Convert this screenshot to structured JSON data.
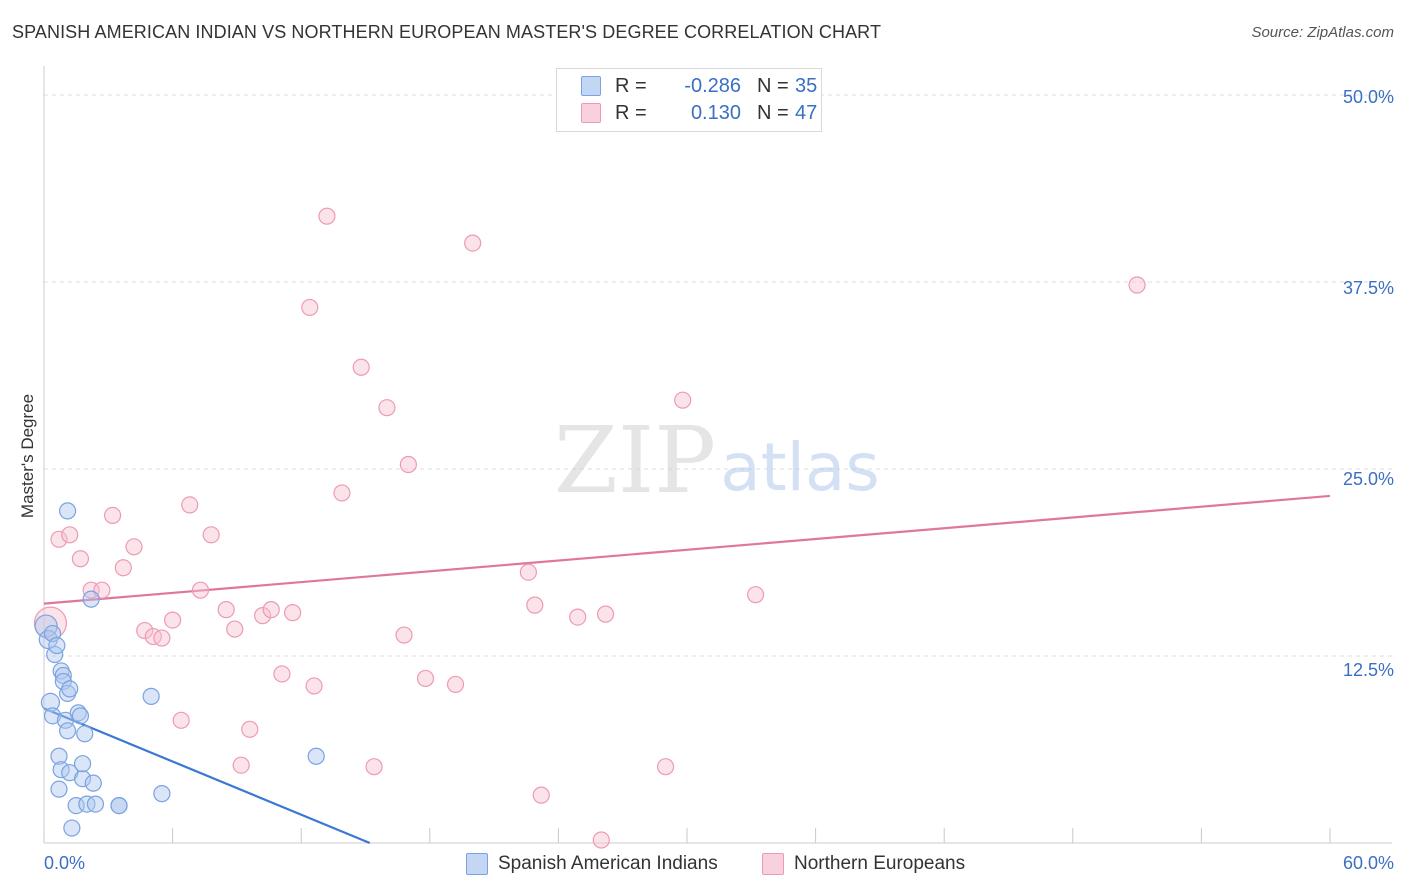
{
  "header": {
    "title": "SPANISH AMERICAN INDIAN VS NORTHERN EUROPEAN MASTER'S DEGREE CORRELATION CHART",
    "source": "Source: ZipAtlas.com"
  },
  "watermark": {
    "zip": "ZIP",
    "atlas": "atlas"
  },
  "legend_top": {
    "rows": [
      {
        "r_label": "R =",
        "r_value": "-0.286",
        "n_label": "N =",
        "n_value": "35"
      },
      {
        "r_label": "R =",
        "r_value": "0.130",
        "n_label": "N =",
        "n_value": "47"
      }
    ]
  },
  "legend_bottom": {
    "items": [
      {
        "label": "Spanish American Indians"
      },
      {
        "label": "Northern Europeans"
      }
    ]
  },
  "axes": {
    "x_min_label": "0.0%",
    "x_max_label": "60.0%",
    "y_tick_labels": [
      "50.0%",
      "37.5%",
      "25.0%",
      "12.5%"
    ],
    "y_title": "Master's Degree"
  },
  "colors": {
    "blue_fill": "#aec8f0",
    "blue_stroke": "#7aa3e0",
    "blue_line": "#3a78d4",
    "pink_fill": "#f6c0d0",
    "pink_stroke": "#ee9ab4",
    "pink_line": "#e0779b",
    "tick_text": "#3a6fc4",
    "grid": "#dcdcdc"
  },
  "chart_data": {
    "type": "scatter",
    "title": "SPANISH AMERICAN INDIAN VS NORTHERN EUROPEAN MASTER'S DEGREE CORRELATION CHART",
    "xlabel": "",
    "ylabel": "Master's Degree",
    "xlim": [
      0,
      60
    ],
    "ylim": [
      0,
      50
    ],
    "x_ticks": [
      0,
      6,
      12,
      18,
      24,
      30,
      36,
      42,
      48,
      54,
      60
    ],
    "y_gridlines": [
      12.5,
      25,
      37.5,
      50
    ],
    "series": [
      {
        "name": "Spanish American Indians",
        "color": "blue",
        "r": -0.286,
        "n": 35,
        "trend": {
          "x": [
            0,
            15.2
          ],
          "y": [
            9.0,
            0
          ]
        },
        "points": [
          {
            "x": 0.1,
            "y": 14.5,
            "s": 11
          },
          {
            "x": 0.2,
            "y": 13.6,
            "s": 9
          },
          {
            "x": 0.3,
            "y": 9.4,
            "s": 9
          },
          {
            "x": 0.4,
            "y": 8.5,
            "s": 8
          },
          {
            "x": 0.4,
            "y": 14.0,
            "s": 8
          },
          {
            "x": 0.5,
            "y": 12.6,
            "s": 8
          },
          {
            "x": 0.6,
            "y": 13.2,
            "s": 8
          },
          {
            "x": 0.7,
            "y": 5.8,
            "s": 8
          },
          {
            "x": 0.8,
            "y": 4.9,
            "s": 8
          },
          {
            "x": 0.7,
            "y": 3.6,
            "s": 8
          },
          {
            "x": 0.8,
            "y": 11.5,
            "s": 8
          },
          {
            "x": 0.9,
            "y": 11.2,
            "s": 8
          },
          {
            "x": 0.9,
            "y": 10.8,
            "s": 8
          },
          {
            "x": 1.0,
            "y": 8.2,
            "s": 8
          },
          {
            "x": 1.1,
            "y": 7.5,
            "s": 8
          },
          {
            "x": 1.1,
            "y": 10.0,
            "s": 8
          },
          {
            "x": 1.2,
            "y": 10.3,
            "s": 8
          },
          {
            "x": 1.1,
            "y": 22.2,
            "s": 8
          },
          {
            "x": 1.2,
            "y": 4.7,
            "s": 8
          },
          {
            "x": 1.3,
            "y": 1.0,
            "s": 8
          },
          {
            "x": 1.5,
            "y": 2.5,
            "s": 8
          },
          {
            "x": 1.6,
            "y": 8.7,
            "s": 8
          },
          {
            "x": 1.7,
            "y": 8.5,
            "s": 8
          },
          {
            "x": 1.8,
            "y": 4.3,
            "s": 8
          },
          {
            "x": 1.8,
            "y": 5.3,
            "s": 8
          },
          {
            "x": 1.9,
            "y": 7.3,
            "s": 8
          },
          {
            "x": 2.0,
            "y": 2.6,
            "s": 8
          },
          {
            "x": 2.2,
            "y": 16.3,
            "s": 8
          },
          {
            "x": 2.3,
            "y": 4.0,
            "s": 8
          },
          {
            "x": 2.4,
            "y": 2.6,
            "s": 8
          },
          {
            "x": 3.5,
            "y": 2.5,
            "s": 8
          },
          {
            "x": 3.5,
            "y": 2.5,
            "s": 8
          },
          {
            "x": 5.0,
            "y": 9.8,
            "s": 8
          },
          {
            "x": 5.5,
            "y": 3.3,
            "s": 8
          },
          {
            "x": 12.7,
            "y": 5.8,
            "s": 8
          }
        ]
      },
      {
        "name": "Northern Europeans",
        "color": "pink",
        "r": 0.13,
        "n": 47,
        "trend": {
          "x": [
            0,
            60
          ],
          "y": [
            16.0,
            23.2
          ]
        },
        "points": [
          {
            "x": 0.3,
            "y": 14.7,
            "s": 16
          },
          {
            "x": 0.7,
            "y": 20.3,
            "s": 8
          },
          {
            "x": 1.2,
            "y": 20.6,
            "s": 8
          },
          {
            "x": 1.7,
            "y": 19.0,
            "s": 8
          },
          {
            "x": 2.2,
            "y": 16.9,
            "s": 8
          },
          {
            "x": 2.7,
            "y": 16.9,
            "s": 8
          },
          {
            "x": 3.2,
            "y": 21.9,
            "s": 8
          },
          {
            "x": 3.7,
            "y": 18.4,
            "s": 8
          },
          {
            "x": 4.2,
            "y": 19.8,
            "s": 8
          },
          {
            "x": 4.7,
            "y": 14.2,
            "s": 8
          },
          {
            "x": 5.1,
            "y": 13.8,
            "s": 8
          },
          {
            "x": 5.5,
            "y": 13.7,
            "s": 8
          },
          {
            "x": 6.0,
            "y": 14.9,
            "s": 8
          },
          {
            "x": 6.4,
            "y": 8.2,
            "s": 8
          },
          {
            "x": 6.8,
            "y": 22.6,
            "s": 8
          },
          {
            "x": 7.3,
            "y": 16.9,
            "s": 8
          },
          {
            "x": 7.8,
            "y": 20.6,
            "s": 8
          },
          {
            "x": 8.5,
            "y": 15.6,
            "s": 8
          },
          {
            "x": 8.9,
            "y": 14.3,
            "s": 8
          },
          {
            "x": 9.2,
            "y": 5.2,
            "s": 8
          },
          {
            "x": 9.6,
            "y": 7.6,
            "s": 8
          },
          {
            "x": 10.2,
            "y": 15.2,
            "s": 8
          },
          {
            "x": 10.6,
            "y": 15.6,
            "s": 8
          },
          {
            "x": 11.1,
            "y": 11.3,
            "s": 8
          },
          {
            "x": 11.6,
            "y": 15.4,
            "s": 8
          },
          {
            "x": 12.4,
            "y": 35.8,
            "s": 8
          },
          {
            "x": 12.6,
            "y": 10.5,
            "s": 8
          },
          {
            "x": 13.2,
            "y": 41.9,
            "s": 8
          },
          {
            "x": 13.9,
            "y": 23.4,
            "s": 8
          },
          {
            "x": 14.8,
            "y": 31.8,
            "s": 8
          },
          {
            "x": 15.4,
            "y": 5.1,
            "s": 8
          },
          {
            "x": 16.0,
            "y": 29.1,
            "s": 8
          },
          {
            "x": 16.8,
            "y": 13.9,
            "s": 8
          },
          {
            "x": 17.0,
            "y": 25.3,
            "s": 8
          },
          {
            "x": 17.8,
            "y": 11.0,
            "s": 8
          },
          {
            "x": 19.2,
            "y": 10.6,
            "s": 8
          },
          {
            "x": 20.0,
            "y": 40.1,
            "s": 8
          },
          {
            "x": 22.6,
            "y": 18.1,
            "s": 8
          },
          {
            "x": 22.9,
            "y": 15.9,
            "s": 8
          },
          {
            "x": 23.2,
            "y": 3.2,
            "s": 8
          },
          {
            "x": 24.9,
            "y": 15.1,
            "s": 8
          },
          {
            "x": 26.0,
            "y": 0.2,
            "s": 8
          },
          {
            "x": 26.2,
            "y": 15.3,
            "s": 8
          },
          {
            "x": 29.0,
            "y": 5.1,
            "s": 8
          },
          {
            "x": 29.8,
            "y": 29.6,
            "s": 8
          },
          {
            "x": 33.2,
            "y": 16.6,
            "s": 8
          },
          {
            "x": 51.0,
            "y": 37.3,
            "s": 8
          }
        ]
      }
    ]
  }
}
